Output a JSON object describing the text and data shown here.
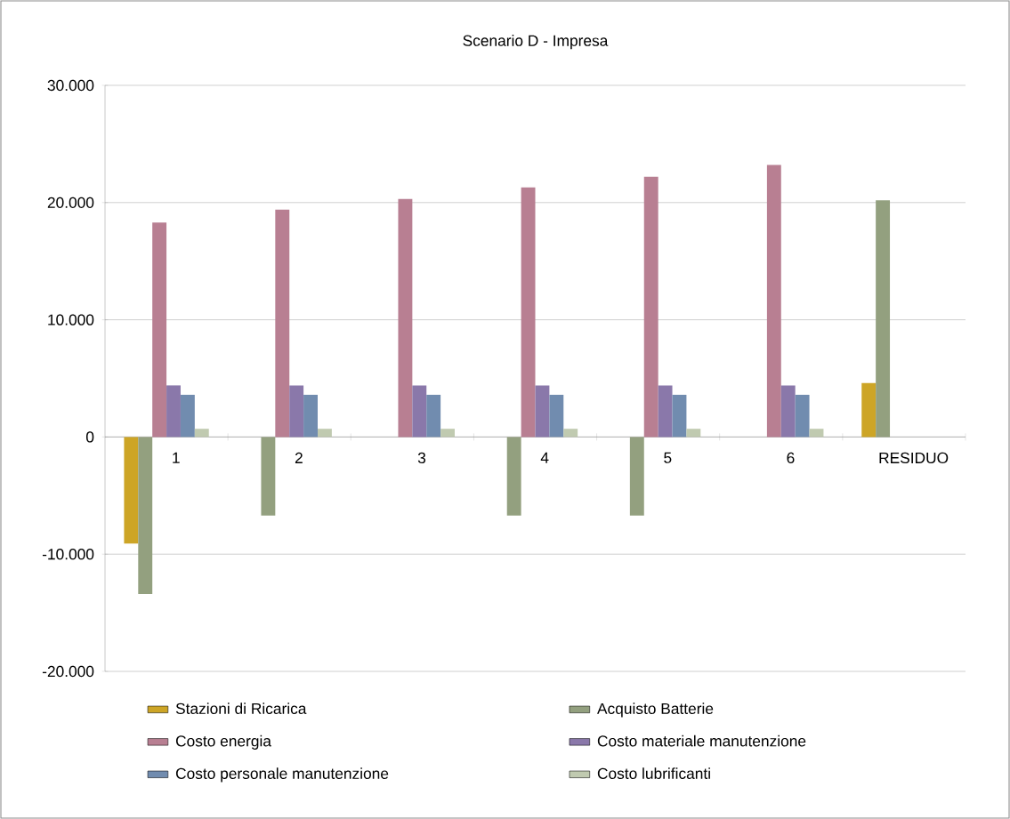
{
  "chart_data": {
    "type": "bar",
    "title": "Scenario D - Impresa",
    "categories": [
      "1",
      "2",
      "3",
      "4",
      "5",
      "6",
      "RESIDUO"
    ],
    "series": [
      {
        "name": "Stazioni di Ricarica",
        "color": "#cda526",
        "values": [
          -9100,
          null,
          null,
          null,
          null,
          null,
          4600
        ]
      },
      {
        "name": "Acquisto Batterie",
        "color": "#93a07f",
        "values": [
          -13400,
          -6700,
          null,
          -6700,
          -6700,
          null,
          20200
        ]
      },
      {
        "name": "Costo energia",
        "color": "#b87f92",
        "values": [
          18300,
          19400,
          20300,
          21300,
          22200,
          23200,
          null
        ]
      },
      {
        "name": "Costo materiale manutenzione",
        "color": "#8a78aa",
        "values": [
          4400,
          4400,
          4400,
          4400,
          4400,
          4400,
          null
        ]
      },
      {
        "name": "Costo personale manutenzione",
        "color": "#718caf",
        "values": [
          3600,
          3600,
          3600,
          3600,
          3600,
          3600,
          null
        ]
      },
      {
        "name": "Costo lubrificanti",
        "color": "#c0cab0",
        "values": [
          700,
          700,
          700,
          700,
          700,
          700,
          null
        ]
      }
    ],
    "ylim": [
      -20000,
      30000
    ],
    "yticks": [
      {
        "value": -20000,
        "label": "-20.000"
      },
      {
        "value": -10000,
        "label": "-10.000"
      },
      {
        "value": 0,
        "label": "0"
      },
      {
        "value": 10000,
        "label": "10.000"
      },
      {
        "value": 20000,
        "label": "20.000"
      },
      {
        "value": 30000,
        "label": "30.000"
      }
    ],
    "grid": "y",
    "legend": "bottom"
  }
}
